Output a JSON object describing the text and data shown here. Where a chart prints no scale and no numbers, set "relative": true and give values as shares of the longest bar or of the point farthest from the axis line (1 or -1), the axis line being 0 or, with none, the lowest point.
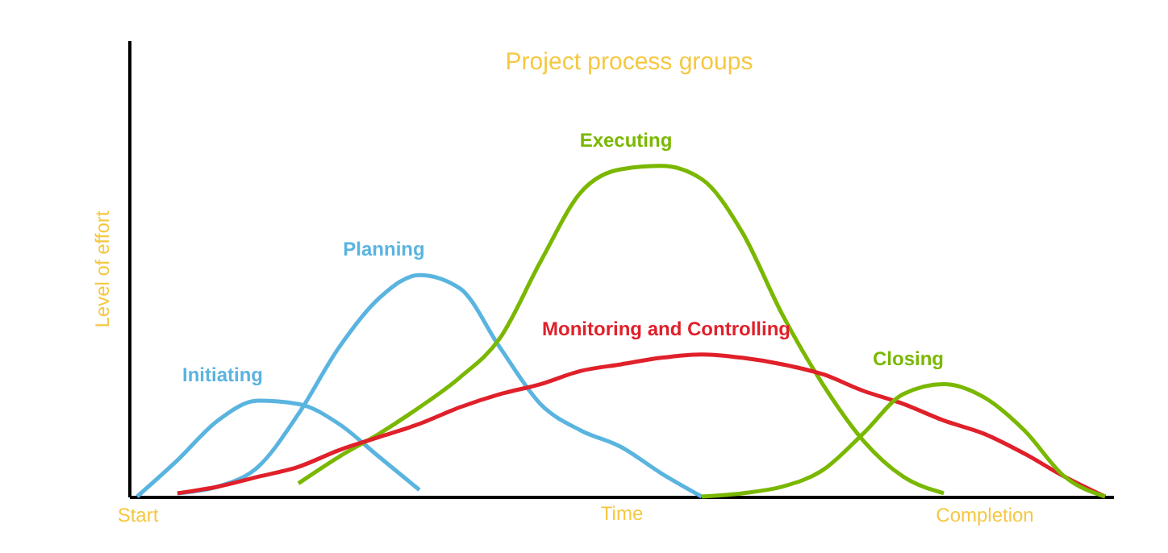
{
  "chart_data": {
    "type": "line",
    "title": "Project process groups",
    "xlabel": "Time",
    "ylabel": "Level of effort",
    "relative": true,
    "categories": [
      "Start",
      null,
      null,
      null,
      null,
      null,
      null,
      null,
      null,
      null,
      null,
      null,
      null,
      null,
      null,
      null,
      null,
      null,
      null,
      null,
      null,
      "Completion",
      null,
      null,
      null
    ],
    "grid": false,
    "legend": false,
    "marker": "none",
    "line_style": "solid",
    "series": [
      {
        "name": "Initiating",
        "color": "#5ab4e0",
        "values": [
          0,
          0.11,
          0.23,
          0.29,
          0.28,
          0.22,
          0.12,
          0.02,
          null,
          null,
          null,
          null,
          null,
          null,
          null,
          null,
          null,
          null,
          null,
          null,
          null,
          null,
          null,
          null,
          null
        ]
      },
      {
        "name": "Planning",
        "color": "#5ab4e0",
        "values": [
          null,
          0.01,
          0.03,
          0.09,
          0.25,
          0.45,
          0.6,
          0.67,
          0.63,
          0.45,
          0.28,
          0.2,
          0.15,
          0.07,
          0,
          null,
          null,
          null,
          null,
          null,
          null,
          null,
          null,
          null,
          null
        ]
      },
      {
        "name": "Executing",
        "color": "#7ab800",
        "values": [
          null,
          null,
          null,
          null,
          0.04,
          0.12,
          0.19,
          0.27,
          0.36,
          0.48,
          0.71,
          0.92,
          0.99,
          1,
          0.96,
          0.8,
          0.55,
          0.34,
          0.17,
          0.06,
          0.01,
          null,
          null,
          null,
          null
        ]
      },
      {
        "name": "Monitoring and Controlling",
        "color": "#e0202a",
        "values": [
          null,
          0.01,
          0.03,
          0.06,
          0.09,
          0.14,
          0.18,
          0.22,
          0.27,
          0.31,
          0.34,
          0.38,
          0.4,
          0.42,
          0.43,
          0.42,
          0.4,
          0.37,
          0.32,
          0.28,
          0.23,
          0.19,
          0.13,
          0.06,
          0
        ]
      },
      {
        "name": "Closing",
        "color": "#7ab800",
        "values": [
          null,
          null,
          null,
          null,
          null,
          null,
          null,
          null,
          null,
          null,
          null,
          null,
          null,
          null,
          0,
          0.01,
          0.03,
          0.08,
          0.19,
          0.31,
          0.34,
          0.3,
          0.2,
          0.06,
          0
        ]
      }
    ]
  }
}
